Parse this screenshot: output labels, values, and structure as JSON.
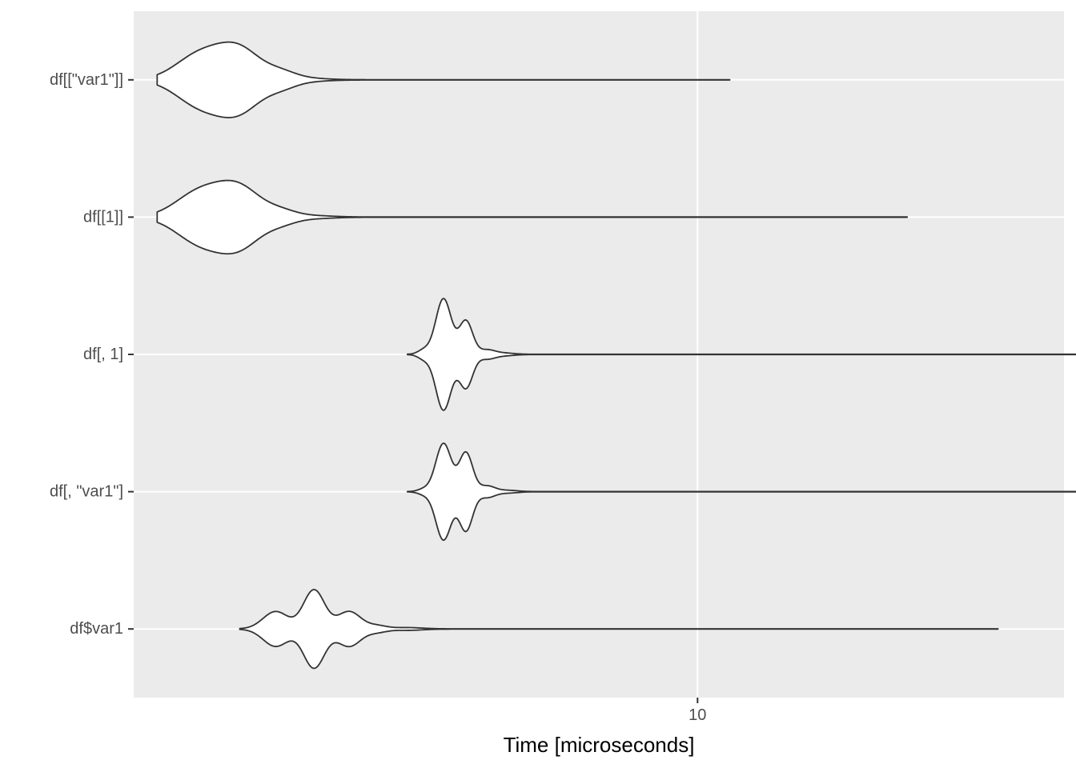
{
  "chart_data": {
    "type": "violin",
    "orientation": "horizontal",
    "xlabel": "Time [microseconds]",
    "ylabel": "",
    "x_scale": "log10",
    "xlim": [
      2.6,
      24
    ],
    "x_ticks": [
      10
    ],
    "x_tick_labels": [
      "10"
    ],
    "grid": true,
    "legend": "none",
    "panel_background": "#ebebeb",
    "grid_color": "#ffffff",
    "violin_fill": "#ffffff",
    "violin_stroke": "#333333",
    "categories": [
      "df[[\"var1\"]]",
      "df[[1]]",
      "df[, 1]",
      "df[, \"var1\"]",
      "df$var1"
    ],
    "series": [
      {
        "min": 2.75,
        "max": 10.8,
        "peaks": [
          {
            "x": 3.05,
            "height": 0.41,
            "width": 0.025
          },
          {
            "x": 3.35,
            "height": 0.46,
            "width": 0.022
          },
          {
            "x": 3.7,
            "height": 0.11,
            "width": 0.016
          },
          {
            "x": 3.95,
            "height": 0.02,
            "width": 0.02
          }
        ]
      },
      {
        "min": 2.75,
        "max": 16.5,
        "peaks": [
          {
            "x": 3.05,
            "height": 0.41,
            "width": 0.025
          },
          {
            "x": 3.35,
            "height": 0.44,
            "width": 0.022
          },
          {
            "x": 3.7,
            "height": 0.09,
            "width": 0.016
          },
          {
            "x": 4.0,
            "height": 0.02,
            "width": 0.02
          }
        ]
      },
      {
        "min": 5.0,
        "max": 28.0,
        "peaks": [
          {
            "x": 5.2,
            "height": 0.07,
            "width": 0.006
          },
          {
            "x": 5.45,
            "height": 0.9,
            "width": 0.008
          },
          {
            "x": 5.75,
            "height": 0.54,
            "width": 0.007
          },
          {
            "x": 6.05,
            "height": 0.07,
            "width": 0.008
          },
          {
            "x": 6.3,
            "height": 0.02,
            "width": 0.01
          }
        ]
      },
      {
        "min": 5.0,
        "max": 38.0,
        "peaks": [
          {
            "x": 5.2,
            "height": 0.04,
            "width": 0.006
          },
          {
            "x": 5.45,
            "height": 0.78,
            "width": 0.008
          },
          {
            "x": 5.75,
            "height": 0.63,
            "width": 0.007
          },
          {
            "x": 6.05,
            "height": 0.09,
            "width": 0.008
          },
          {
            "x": 6.35,
            "height": 0.02,
            "width": 0.01
          }
        ]
      },
      {
        "min": 3.35,
        "max": 20.5,
        "peaks": [
          {
            "x": 3.65,
            "height": 0.28,
            "width": 0.013
          },
          {
            "x": 4.0,
            "height": 0.63,
            "width": 0.011
          },
          {
            "x": 4.35,
            "height": 0.28,
            "width": 0.012
          },
          {
            "x": 4.65,
            "height": 0.05,
            "width": 0.01
          },
          {
            "x": 5.0,
            "height": 0.02,
            "width": 0.015
          }
        ]
      }
    ]
  }
}
